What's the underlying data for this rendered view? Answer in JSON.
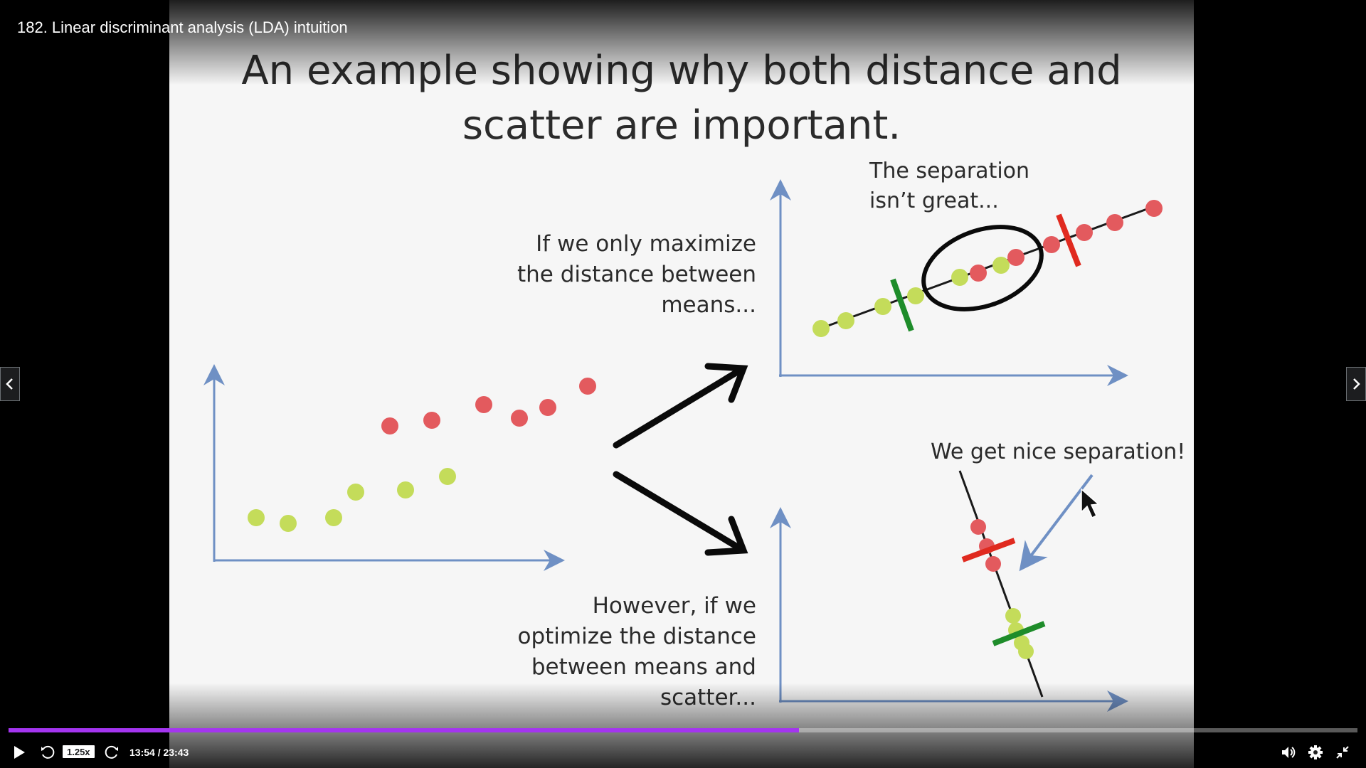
{
  "lecture": {
    "title": "182. Linear discriminant analysis (LDA) intuition"
  },
  "slide": {
    "heading_line1": "An example showing why both distance and",
    "heading_line2": "scatter are important.",
    "top_caption_line1": "If we only maximize",
    "top_caption_line2": "the distance between",
    "top_caption_line3": "means...",
    "top_note_line1": "The separation",
    "top_note_line2": "isn’t great...",
    "bottom_caption_line1": "However, if we",
    "bottom_caption_line2": "optimize the distance",
    "bottom_caption_line3": "between means and",
    "bottom_caption_line4": "scatter...",
    "bottom_note": "We get nice separation!",
    "colors": {
      "green_point": "#c4dc5a",
      "red_point": "#e35a5e",
      "axis": "#6f90c4",
      "green_mark": "#1e8c2a",
      "red_mark": "#e02a1f",
      "text": "#2b2b2b"
    }
  },
  "player": {
    "speed": "1.25x",
    "time": "13:54 / 23:43",
    "progress": 0.586,
    "accent_color": "#a435f0",
    "icons": {
      "play": "play-icon",
      "rewind": "rewind-5-icon",
      "forward": "forward-5-icon",
      "volume": "volume-icon",
      "settings": "gear-icon",
      "exit_fullscreen": "exit-fullscreen-icon",
      "prev": "chevron-left-icon",
      "next": "chevron-right-icon"
    }
  }
}
